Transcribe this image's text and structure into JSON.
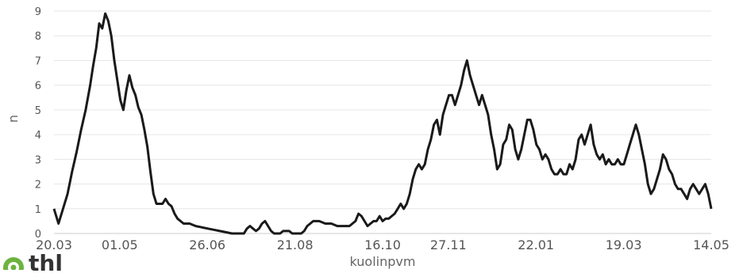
{
  "chart_data": {
    "type": "line",
    "title": "",
    "xlabel": "kuolinpvm",
    "ylabel": "n",
    "ylim": [
      0,
      9
    ],
    "yticks": [
      0,
      1,
      2,
      3,
      4,
      5,
      6,
      7,
      8,
      9
    ],
    "xtick_labels": [
      "20.03",
      "01.05",
      "26.06",
      "21.08",
      "16.10",
      "27.11",
      "22.01",
      "19.03",
      "14.05"
    ],
    "x_index_range": [
      0,
      420
    ],
    "xtick_index": [
      0,
      42,
      98,
      154,
      210,
      252,
      308,
      364,
      420
    ],
    "grid": true,
    "legend": "none",
    "line_color": "#1a1a1a",
    "series": [
      {
        "points": [
          [
            0,
            1.0
          ],
          [
            3,
            0.4
          ],
          [
            6,
            1.0
          ],
          [
            9,
            1.6
          ],
          [
            12,
            2.5
          ],
          [
            15,
            3.3
          ],
          [
            18,
            4.2
          ],
          [
            21,
            5.0
          ],
          [
            24,
            6.0
          ],
          [
            26,
            6.8
          ],
          [
            28,
            7.5
          ],
          [
            30,
            8.5
          ],
          [
            32,
            8.3
          ],
          [
            34,
            8.9
          ],
          [
            36,
            8.6
          ],
          [
            38,
            8.0
          ],
          [
            40,
            7.0
          ],
          [
            42,
            6.2
          ],
          [
            44,
            5.4
          ],
          [
            46,
            5.0
          ],
          [
            48,
            5.8
          ],
          [
            50,
            6.4
          ],
          [
            52,
            5.9
          ],
          [
            54,
            5.6
          ],
          [
            56,
            5.1
          ],
          [
            58,
            4.8
          ],
          [
            60,
            4.2
          ],
          [
            62,
            3.5
          ],
          [
            64,
            2.5
          ],
          [
            66,
            1.6
          ],
          [
            68,
            1.2
          ],
          [
            70,
            1.2
          ],
          [
            72,
            1.2
          ],
          [
            74,
            1.4
          ],
          [
            76,
            1.2
          ],
          [
            78,
            1.1
          ],
          [
            80,
            0.8
          ],
          [
            82,
            0.6
          ],
          [
            86,
            0.4
          ],
          [
            90,
            0.4
          ],
          [
            94,
            0.3
          ],
          [
            98,
            0.25
          ],
          [
            102,
            0.2
          ],
          [
            106,
            0.15
          ],
          [
            110,
            0.1
          ],
          [
            114,
            0.05
          ],
          [
            118,
            0.0
          ],
          [
            122,
            0.0
          ],
          [
            126,
            0.0
          ],
          [
            128,
            0.2
          ],
          [
            130,
            0.3
          ],
          [
            132,
            0.2
          ],
          [
            134,
            0.1
          ],
          [
            136,
            0.2
          ],
          [
            138,
            0.4
          ],
          [
            140,
            0.5
          ],
          [
            142,
            0.3
          ],
          [
            144,
            0.1
          ],
          [
            146,
            0.0
          ],
          [
            150,
            0.0
          ],
          [
            152,
            0.1
          ],
          [
            156,
            0.1
          ],
          [
            158,
            0.0
          ],
          [
            162,
            0.0
          ],
          [
            164,
            0.0
          ],
          [
            166,
            0.1
          ],
          [
            168,
            0.3
          ],
          [
            170,
            0.4
          ],
          [
            172,
            0.5
          ],
          [
            176,
            0.5
          ],
          [
            180,
            0.4
          ],
          [
            184,
            0.4
          ],
          [
            188,
            0.3
          ],
          [
            192,
            0.3
          ],
          [
            196,
            0.3
          ],
          [
            200,
            0.5
          ],
          [
            202,
            0.8
          ],
          [
            204,
            0.7
          ],
          [
            206,
            0.5
          ],
          [
            208,
            0.3
          ],
          [
            210,
            0.4
          ],
          [
            212,
            0.5
          ],
          [
            214,
            0.5
          ],
          [
            216,
            0.7
          ],
          [
            218,
            0.5
          ],
          [
            220,
            0.6
          ],
          [
            222,
            0.6
          ],
          [
            224,
            0.7
          ],
          [
            226,
            0.8
          ],
          [
            228,
            1.0
          ],
          [
            230,
            1.2
          ],
          [
            232,
            1.0
          ],
          [
            234,
            1.2
          ],
          [
            236,
            1.6
          ],
          [
            238,
            2.2
          ],
          [
            240,
            2.6
          ],
          [
            242,
            2.8
          ],
          [
            244,
            2.6
          ],
          [
            246,
            2.8
          ],
          [
            248,
            3.4
          ],
          [
            250,
            3.8
          ],
          [
            252,
            4.4
          ],
          [
            254,
            4.6
          ],
          [
            256,
            4.0
          ],
          [
            258,
            4.8
          ],
          [
            260,
            5.2
          ],
          [
            262,
            5.6
          ],
          [
            264,
            5.6
          ],
          [
            266,
            5.2
          ],
          [
            268,
            5.6
          ],
          [
            270,
            6.0
          ],
          [
            272,
            6.6
          ],
          [
            274,
            7.0
          ],
          [
            276,
            6.4
          ],
          [
            278,
            6.0
          ],
          [
            280,
            5.6
          ],
          [
            282,
            5.2
          ],
          [
            284,
            5.6
          ],
          [
            286,
            5.2
          ],
          [
            288,
            4.8
          ],
          [
            290,
            4.0
          ],
          [
            292,
            3.4
          ],
          [
            294,
            2.6
          ],
          [
            296,
            2.8
          ],
          [
            298,
            3.6
          ],
          [
            300,
            3.8
          ],
          [
            302,
            4.4
          ],
          [
            304,
            4.2
          ],
          [
            306,
            3.4
          ],
          [
            308,
            3.0
          ],
          [
            310,
            3.4
          ],
          [
            312,
            4.0
          ],
          [
            314,
            4.6
          ],
          [
            316,
            4.6
          ],
          [
            318,
            4.2
          ],
          [
            320,
            3.6
          ],
          [
            322,
            3.4
          ],
          [
            324,
            3.0
          ],
          [
            326,
            3.2
          ],
          [
            328,
            3.0
          ],
          [
            330,
            2.6
          ],
          [
            332,
            2.4
          ],
          [
            334,
            2.4
          ],
          [
            336,
            2.6
          ],
          [
            338,
            2.4
          ],
          [
            340,
            2.4
          ],
          [
            342,
            2.8
          ],
          [
            344,
            2.6
          ],
          [
            346,
            3.0
          ],
          [
            348,
            3.8
          ],
          [
            350,
            4.0
          ],
          [
            352,
            3.6
          ],
          [
            354,
            4.0
          ],
          [
            356,
            4.4
          ],
          [
            358,
            3.6
          ],
          [
            360,
            3.2
          ],
          [
            362,
            3.0
          ],
          [
            364,
            3.2
          ],
          [
            366,
            2.8
          ],
          [
            368,
            3.0
          ],
          [
            370,
            2.8
          ],
          [
            372,
            2.8
          ],
          [
            374,
            3.0
          ],
          [
            376,
            2.8
          ],
          [
            378,
            2.8
          ],
          [
            380,
            3.2
          ],
          [
            382,
            3.6
          ],
          [
            384,
            4.0
          ],
          [
            386,
            4.4
          ],
          [
            388,
            4.0
          ],
          [
            390,
            3.4
          ],
          [
            392,
            2.8
          ],
          [
            394,
            2.0
          ],
          [
            396,
            1.6
          ],
          [
            398,
            1.8
          ],
          [
            400,
            2.2
          ],
          [
            402,
            2.6
          ],
          [
            404,
            3.2
          ],
          [
            406,
            3.0
          ],
          [
            408,
            2.6
          ],
          [
            410,
            2.4
          ],
          [
            412,
            2.0
          ],
          [
            414,
            1.8
          ],
          [
            416,
            1.8
          ],
          [
            418,
            1.6
          ],
          [
            420,
            1.4
          ],
          [
            422,
            1.8
          ],
          [
            424,
            2.0
          ],
          [
            426,
            1.8
          ],
          [
            428,
            1.6
          ],
          [
            430,
            1.8
          ],
          [
            432,
            2.0
          ],
          [
            434,
            1.6
          ],
          [
            436,
            1.0
          ]
        ]
      }
    ]
  },
  "logo": {
    "text": "thl"
  }
}
